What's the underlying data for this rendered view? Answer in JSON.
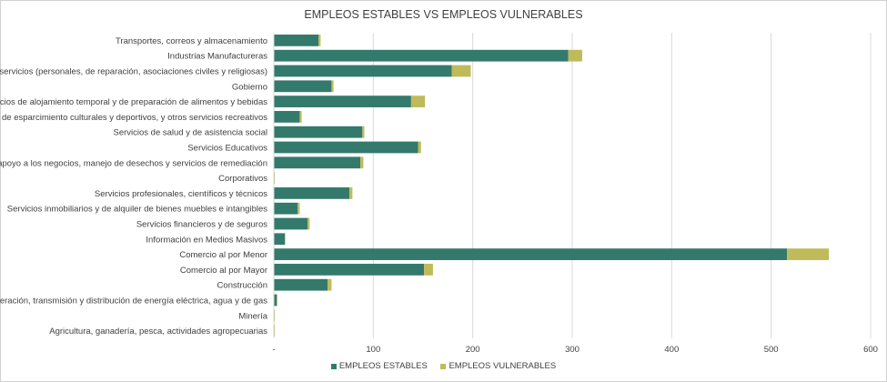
{
  "chart_data": {
    "type": "bar",
    "orientation": "horizontal",
    "stacked": true,
    "title": "EMPLEOS ESTABLES VS EMPLEOS VULNERABLES",
    "categories": [
      "Transportes, correos y almacenamiento",
      "Industrias Manufactureras",
      "Otros servicios (personales, de reparación, asociaciones civiles y religiosas)",
      "Gobierno",
      "Servicios de alojamiento temporal y de preparación de alimentos y bebidas",
      "Servicios de esparcimiento culturales y deportivos, y otros servicios recreativos",
      "Servicios de salud y de asistencia social",
      "Servicios Educativos",
      "Servicios de apoyo a los negocios, manejo de desechos y servicios de remediación",
      "Corporativos",
      "Servicios profesionales, científicos y técnicos",
      "Servicios inmobiliarios y de alquiler de bienes muebles e intangibles",
      "Servicios financieros y de seguros",
      "Información en Medios Masivos",
      "Comercio al por Menor",
      "Comercio al por Mayor",
      "Construcción",
      "Generación, transmisión y distribución de energía eléctrica, agua y de gas",
      "Minería",
      "Agricultura, ganadería, pesca, actividades agropecuarias"
    ],
    "series": [
      {
        "name": "EMPLEOS ESTABLES",
        "color": "#337a6c",
        "values": [
          45,
          296,
          179,
          58,
          138,
          26,
          89,
          145,
          87,
          0.5,
          76,
          24,
          34,
          11,
          516,
          151,
          54,
          3,
          0.5,
          0.5
        ]
      },
      {
        "name": "EMPLEOS VULNERABLES",
        "color": "#bfbb5a",
        "values": [
          2,
          14,
          19,
          2,
          14,
          2,
          2,
          3,
          3,
          0.5,
          3,
          2,
          2,
          0.3,
          42,
          9,
          4,
          0,
          0.5,
          0.5
        ]
      }
    ],
    "xlim": [
      0,
      600
    ],
    "xticks": [
      "-",
      "100",
      "200",
      "300",
      "400",
      "500",
      "600"
    ],
    "grid": true,
    "legend": "bottom"
  }
}
